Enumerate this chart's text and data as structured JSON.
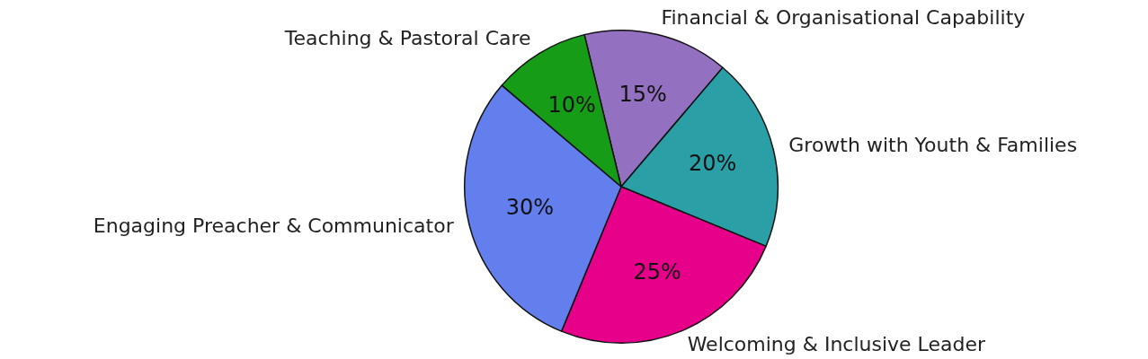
{
  "chart_data": {
    "type": "pie",
    "categories": [
      "Financial & Organisational Capability",
      "Growth with Youth & Families",
      "Welcoming & Inclusive Leader",
      "Engaging Preacher & Communicator",
      "Teaching & Pastoral Care"
    ],
    "values": [
      15,
      20,
      25,
      30,
      10
    ],
    "colors": [
      "#9370c0",
      "#2a9fa6",
      "#e6008a",
      "#637eed",
      "#169c16"
    ],
    "value_labels": [
      "15%",
      "20%",
      "25%",
      "30%",
      "10%"
    ],
    "legend": false
  }
}
